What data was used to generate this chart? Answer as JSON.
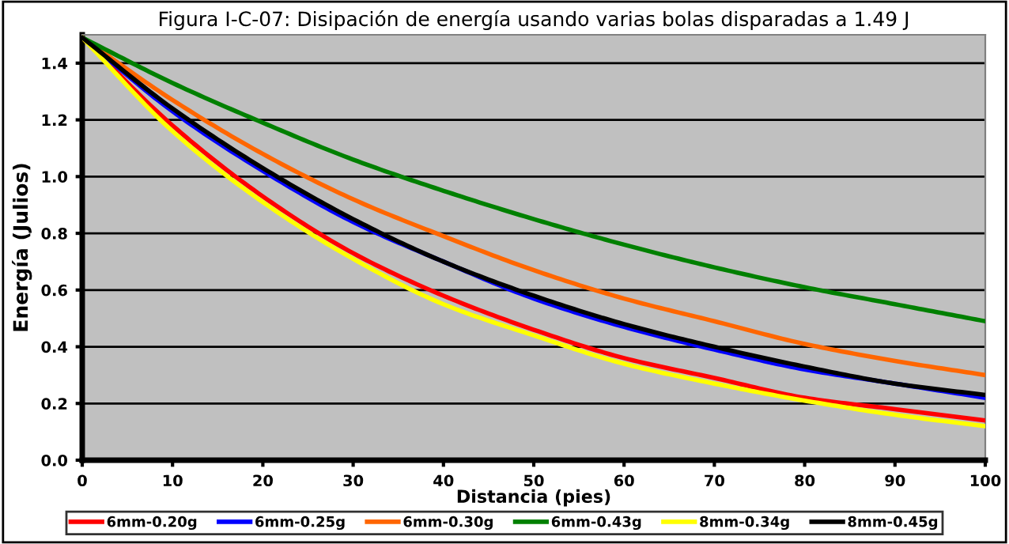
{
  "chart_data": {
    "type": "line",
    "title": "Figura I-C-07: Disipación de energía usando varias bolas disparadas a 1.49 J",
    "xlabel": "Distancia (pies)",
    "ylabel": "Energía (Julios)",
    "x": [
      0,
      10,
      20,
      30,
      40,
      50,
      60,
      70,
      80,
      90,
      100
    ],
    "series": [
      {
        "name": "6mm-0.20g",
        "color": "#ff0000",
        "values": [
          1.49,
          1.18,
          0.93,
          0.73,
          0.58,
          0.46,
          0.36,
          0.29,
          0.22,
          0.18,
          0.14
        ]
      },
      {
        "name": "6mm-0.25g",
        "color": "#0000ff",
        "values": [
          1.49,
          1.23,
          1.02,
          0.84,
          0.7,
          0.57,
          0.47,
          0.39,
          0.32,
          0.27,
          0.22
        ]
      },
      {
        "name": "6mm-0.30g",
        "color": "#ff6600",
        "values": [
          1.49,
          1.27,
          1.08,
          0.92,
          0.79,
          0.67,
          0.57,
          0.49,
          0.41,
          0.35,
          0.3
        ]
      },
      {
        "name": "6mm-0.43g",
        "color": "#008000",
        "values": [
          1.49,
          1.33,
          1.19,
          1.06,
          0.95,
          0.85,
          0.76,
          0.68,
          0.61,
          0.55,
          0.49
        ]
      },
      {
        "name": "8mm-0.34g",
        "color": "#ffff00",
        "values": [
          1.49,
          1.16,
          0.91,
          0.71,
          0.55,
          0.44,
          0.34,
          0.27,
          0.21,
          0.16,
          0.12
        ]
      },
      {
        "name": "8mm-0.45g",
        "color": "#000000",
        "values": [
          1.49,
          1.24,
          1.03,
          0.85,
          0.7,
          0.58,
          0.48,
          0.4,
          0.33,
          0.27,
          0.23
        ]
      }
    ],
    "xlim": [
      0,
      100
    ],
    "xticks": [
      0,
      10,
      20,
      30,
      40,
      50,
      60,
      70,
      80,
      90,
      100
    ],
    "ylim": [
      0,
      1.5
    ],
    "yticks": [
      {
        "value": 0,
        "label": "0.0"
      },
      0.2,
      0.4,
      0.6,
      0.8,
      {
        "value": 1,
        "label": "1.0"
      },
      1.2,
      1.4
    ],
    "grid": "y",
    "legend": "bottom",
    "marker": "none",
    "line_style": "solid"
  }
}
